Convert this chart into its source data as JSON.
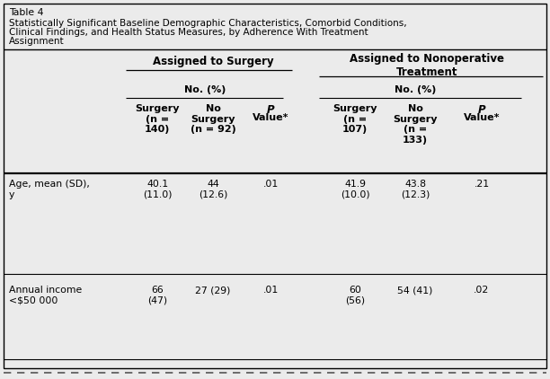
{
  "table_label": "Table 4",
  "title_lines": [
    "Statistically Significant Baseline Demographic Characteristics, Comorbid Conditions,",
    "Clinical Findings, and Health Status Measures, by Adherence With Treatment",
    "Assignment"
  ],
  "col_group1_header": "Assigned to Surgery",
  "col_group2_header": "Assigned to Nonoperative\nTreatment",
  "subheader_left": "No. (%)",
  "subheader_right": "No. (%)",
  "col_headers": [
    [
      "Surgery\n(n =\n140)",
      false
    ],
    [
      "No\nSurgery\n(n = 92)",
      false
    ],
    [
      "P\nValue*",
      true
    ],
    [
      "Surgery\n(n =\n107)",
      false
    ],
    [
      "No\nSurgery\n(n =\n133)",
      false
    ],
    [
      "P\nValue*",
      true
    ]
  ],
  "row_labels": [
    "Age, mean (SD),\ny",
    "Annual income\n<$50 000"
  ],
  "data": [
    [
      "40.1\n(11.0)",
      "44\n(12.6)",
      ".01",
      "41.9\n(10.0)",
      "43.8\n(12.3)",
      ".21"
    ],
    [
      "66\n(47)",
      "27 (29)",
      ".01",
      "60\n(56)",
      "54 (41)",
      ".02"
    ]
  ],
  "bg_color": "#ebebeb",
  "text_color": "#000000",
  "border_color": "#000000"
}
